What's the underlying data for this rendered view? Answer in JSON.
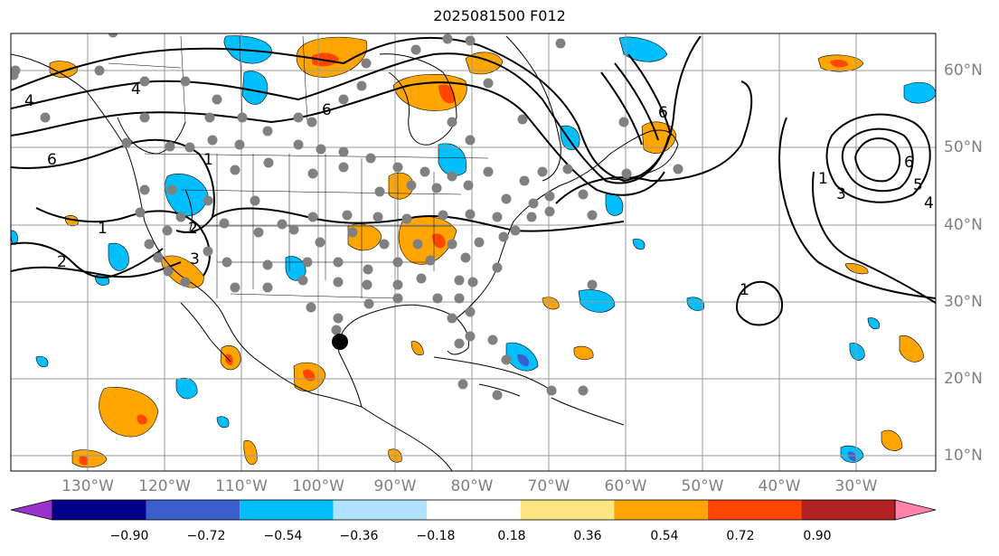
{
  "title": "2025081500 F012",
  "map": {
    "projection": "equirectangular",
    "lon_range": [
      -145,
      -24
    ],
    "lat_range": [
      8,
      65
    ],
    "gridlines": true,
    "lon_labels": [
      "130°W",
      "120°W",
      "110°W",
      "100°W",
      "90°W",
      "80°W",
      "70°W",
      "60°W",
      "50°W",
      "40°W",
      "30°W"
    ],
    "lat_labels": [
      "60°N",
      "50°N",
      "40°N",
      "30°N",
      "20°N",
      "10°N"
    ],
    "contour_labels": [
      "4",
      "6",
      "1",
      "2",
      "3",
      "6",
      "1",
      "2",
      "6",
      "4",
      "1",
      "3",
      "6",
      "5",
      "4",
      "1"
    ],
    "observation_marker_color": "#808080",
    "highlight_marker_color": "#000000"
  },
  "colorbar": {
    "tick_labels": [
      "−0.90",
      "−0.72",
      "−0.54",
      "−0.36",
      "−0.18",
      "0.18",
      "0.36",
      "0.54",
      "0.72",
      "0.90"
    ],
    "colors": [
      "#9933cc",
      "#00008b",
      "#3a5fcd",
      "#00bfff",
      "#b0e2ff",
      "#ffffff",
      "#ffe680",
      "#ffa500",
      "#ff4500",
      "#b22222",
      "#ff82ab"
    ],
    "extend": "both"
  }
}
